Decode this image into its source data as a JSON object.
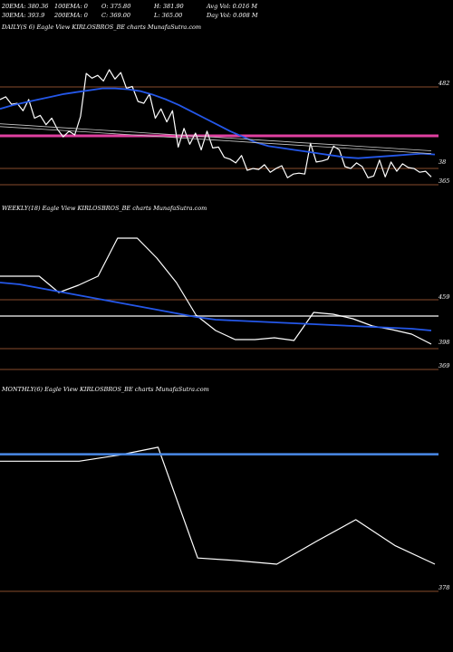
{
  "header": {
    "row1": [
      "20EMA: 380.36",
      "100EMA: 0",
      "O: 375.80",
      "H: 381.90",
      "Avg Vol: 0.016  M"
    ],
    "row2": [
      "30EMA: 393.9",
      "200EMA: 0",
      "C: 369.00",
      "L: 365.00",
      "Day Vol: 0.008  M"
    ]
  },
  "chart_data": [
    {
      "type": "line",
      "title": "DAILY(S          6) Eagle   View  KIRLOSBROS_BE charts MunafaSutra.com",
      "levels": [
        "482",
        "38",
        "365"
      ],
      "series": [
        {
          "name": "",
          "color": "#ffffff",
          "values": [
            452,
            455,
            447,
            448,
            440,
            452,
            432,
            435,
            425,
            432,
            420,
            412,
            418,
            414,
            434,
            480,
            475,
            478,
            472,
            484,
            474,
            481,
            464,
            466,
            450,
            448,
            458,
            432,
            442,
            428,
            440,
            401,
            421,
            404,
            416,
            398,
            418,
            400,
            401,
            390,
            388,
            384,
            392,
            376,
            378,
            377,
            382,
            374,
            378,
            381,
            368,
            372,
            373,
            372,
            405,
            385,
            386,
            388,
            402,
            398,
            380,
            378,
            384,
            380,
            368,
            370,
            387,
            369,
            385,
            375,
            383,
            379,
            378,
            374,
            375,
            369
          ]
        },
        {
          "name": "",
          "color": "#2457e8",
          "values": [
            442,
            446,
            449,
            452,
            455,
            458,
            460,
            462,
            464,
            464,
            463,
            461,
            457,
            452,
            446,
            439,
            432,
            425,
            418,
            412,
            406,
            402,
            400,
            398,
            396,
            394,
            392,
            390,
            389,
            390,
            391,
            392,
            393,
            394,
            393
          ]
        },
        {
          "name": "",
          "color": "#c8c8c8",
          "values": [
            426,
            425,
            424,
            423,
            422,
            421,
            420,
            419,
            418,
            417,
            416,
            415,
            414,
            413,
            412,
            411,
            410,
            409,
            408,
            407,
            406,
            405,
            404,
            403,
            402,
            401,
            400,
            399,
            398,
            397
          ]
        },
        {
          "name": "",
          "color": "#c8c8c8",
          "values": [
            423,
            422,
            421,
            420,
            419,
            418,
            417,
            416,
            415,
            414,
            413,
            412,
            411,
            410,
            409,
            408,
            407,
            406,
            405,
            404,
            403,
            402,
            401,
            400,
            399,
            398,
            397,
            396,
            395,
            394
          ]
        }
      ]
    },
    {
      "type": "line",
      "title": "WEEKLY(18) Eagle   View  KIRLOSBROS_BE charts MunafaSutra.com",
      "levels": [
        "459",
        "398",
        "369"
      ],
      "series": [
        {
          "name": "",
          "color": "#ffffff",
          "values": [
            455,
            455,
            455,
            437,
            445,
            455,
            497,
            497,
            475,
            448,
            412,
            395,
            385,
            385,
            387,
            384,
            415,
            413,
            408,
            400,
            396,
            391,
            380
          ]
        },
        {
          "name": "",
          "color": "#2457e8",
          "values": [
            448,
            446,
            442,
            438,
            434,
            430,
            426,
            422,
            418,
            414,
            410,
            407,
            406,
            405,
            404,
            403,
            402,
            401,
            400,
            399,
            398,
            397,
            395
          ]
        }
      ]
    },
    {
      "type": "line",
      "title": "MONTHLY(6) Eagle   View  KIRLOSBROS_BE charts MunafaSutra.com",
      "levels": [
        "378"
      ],
      "series": [
        {
          "name": "",
          "color": "#ffffff",
          "values": [
            508,
            508,
            508,
            515,
            524,
            397,
            394,
            390,
            416,
            441,
            411,
            390
          ]
        },
        {
          "name": "",
          "color": "#4a8ae8",
          "values": [
            516,
            516
          ]
        }
      ]
    }
  ]
}
